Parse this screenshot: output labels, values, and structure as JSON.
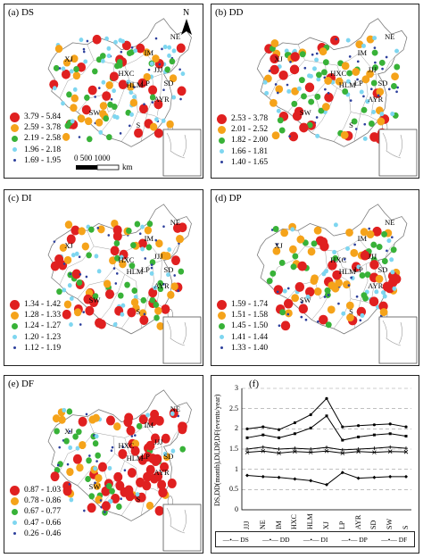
{
  "panels": [
    {
      "id": "a",
      "label": "(a) DS",
      "legend": [
        {
          "range": "3.79 - 5.84",
          "color": "#e02020",
          "size": 11
        },
        {
          "range": "2.59 - 3.78",
          "color": "#f5a31a",
          "size": 9
        },
        {
          "range": "2.19 - 2.58",
          "color": "#38b238",
          "size": 7
        },
        {
          "range": "1.96 - 2.18",
          "color": "#7ed6f0",
          "size": 5
        },
        {
          "range": "1.69 - 1.95",
          "color": "#2c3f9c",
          "size": 3
        }
      ]
    },
    {
      "id": "b",
      "label": "(b) DD",
      "legend": [
        {
          "range": "2.53 - 3.78",
          "color": "#e02020",
          "size": 11
        },
        {
          "range": "2.01 - 2.52",
          "color": "#f5a31a",
          "size": 9
        },
        {
          "range": "1.82 - 2.00",
          "color": "#38b238",
          "size": 7
        },
        {
          "range": "1.66 - 1.81",
          "color": "#7ed6f0",
          "size": 5
        },
        {
          "range": "1.40 - 1.65",
          "color": "#2c3f9c",
          "size": 3
        }
      ]
    },
    {
      "id": "c",
      "label": "(c) DI",
      "legend": [
        {
          "range": "1.34 - 1.42",
          "color": "#e02020",
          "size": 11
        },
        {
          "range": "1.28 - 1.33",
          "color": "#f5a31a",
          "size": 9
        },
        {
          "range": "1.24 - 1.27",
          "color": "#38b238",
          "size": 7
        },
        {
          "range": "1.20 - 1.23",
          "color": "#7ed6f0",
          "size": 5
        },
        {
          "range": "1.12 - 1.19",
          "color": "#2c3f9c",
          "size": 3
        }
      ]
    },
    {
      "id": "d",
      "label": "(d) DP",
      "legend": [
        {
          "range": "1.59 - 1.74",
          "color": "#e02020",
          "size": 11
        },
        {
          "range": "1.51 - 1.58",
          "color": "#f5a31a",
          "size": 9
        },
        {
          "range": "1.45 - 1.50",
          "color": "#38b238",
          "size": 7
        },
        {
          "range": "1.41 - 1.44",
          "color": "#7ed6f0",
          "size": 5
        },
        {
          "range": "1.33 - 1.40",
          "color": "#2c3f9c",
          "size": 3
        }
      ]
    },
    {
      "id": "e",
      "label": "(e) DF",
      "legend": [
        {
          "range": "0.87 - 1.03",
          "color": "#e02020",
          "size": 11
        },
        {
          "range": "0.78 - 0.86",
          "color": "#f5a31a",
          "size": 9
        },
        {
          "range": "0.67 - 0.77",
          "color": "#38b238",
          "size": 7
        },
        {
          "range": "0.47 - 0.66",
          "color": "#7ed6f0",
          "size": 5
        },
        {
          "range": "0.26 - 0.46",
          "color": "#2c3f9c",
          "size": 3
        }
      ]
    }
  ],
  "region_labels": [
    "XJ",
    "NE",
    "IM",
    "JJJ",
    "HXC",
    "HLM",
    "LP",
    "SD",
    "AYR",
    "SW",
    "S"
  ],
  "north_label": "N",
  "scale": {
    "ticks": "0    500 1000",
    "unit": "km"
  },
  "chart_data": {
    "type": "line",
    "label": "(f)",
    "ylabel": "DS,DD(month),DI,DP,DF(events/year)",
    "categories": [
      "JJJ",
      "NE",
      "IM",
      "HXC",
      "HLM",
      "XJ",
      "LP",
      "AYR",
      "SD",
      "SW",
      "S"
    ],
    "ylim": [
      0,
      3
    ],
    "yticks": [
      "0",
      "0.5",
      "1",
      "1.5",
      "2",
      "2.5",
      "3"
    ],
    "series": [
      {
        "name": "DS",
        "values": [
          2.0,
          2.05,
          1.98,
          2.15,
          2.35,
          2.75,
          2.05,
          2.08,
          2.1,
          2.12,
          2.05
        ]
      },
      {
        "name": "DD",
        "values": [
          1.78,
          1.85,
          1.78,
          1.88,
          2.02,
          2.32,
          1.72,
          1.8,
          1.85,
          1.88,
          1.82
        ]
      },
      {
        "name": "DI",
        "values": [
          1.42,
          1.45,
          1.4,
          1.44,
          1.42,
          1.45,
          1.4,
          1.44,
          1.42,
          1.44,
          1.43
        ]
      },
      {
        "name": "DP",
        "values": [
          1.5,
          1.55,
          1.5,
          1.52,
          1.5,
          1.54,
          1.48,
          1.5,
          1.52,
          1.55,
          1.52
        ]
      },
      {
        "name": "DF",
        "values": [
          0.85,
          0.82,
          0.8,
          0.76,
          0.72,
          0.62,
          0.92,
          0.78,
          0.8,
          0.82,
          0.82
        ]
      }
    ]
  }
}
